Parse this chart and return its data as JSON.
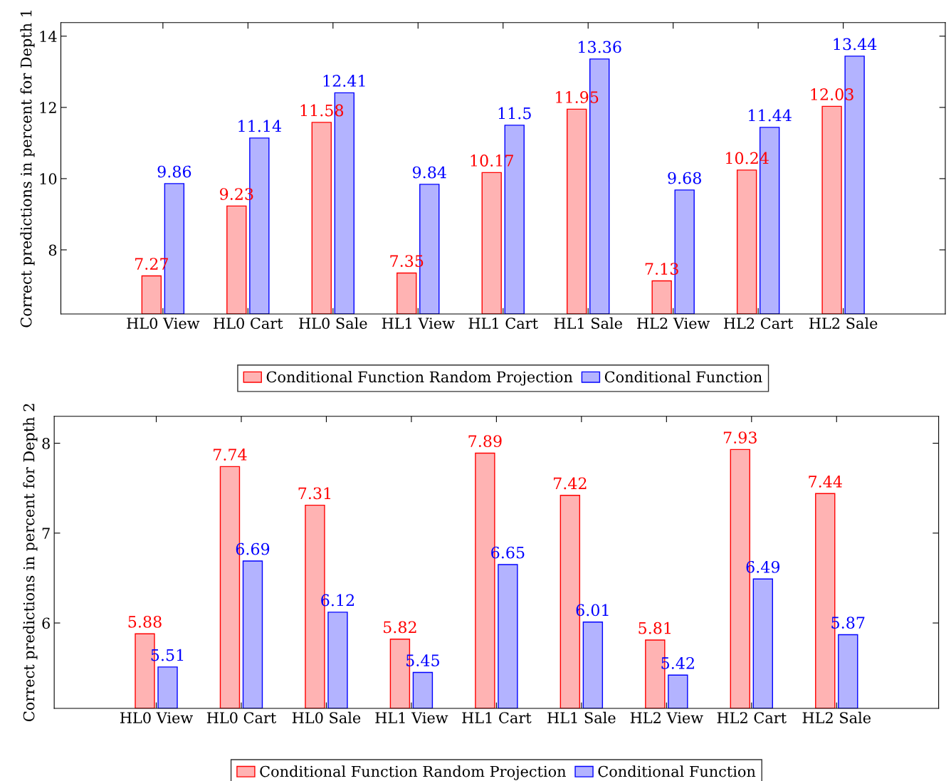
{
  "chart_data": [
    {
      "type": "bar",
      "ylabel": "Correct predictions in percent for Depth 1",
      "categories": [
        "HL0 View",
        "HL0 Cart",
        "HL0 Sale",
        "HL1 View",
        "HL1 Cart",
        "HL1 Sale",
        "HL2 View",
        "HL2 Cart",
        "HL2 Sale"
      ],
      "series": [
        {
          "name": "Conditional Function Random Projection",
          "color": "#ffb3b3",
          "values": [
            7.27,
            9.23,
            11.58,
            7.35,
            10.17,
            11.95,
            7.13,
            10.24,
            12.03
          ]
        },
        {
          "name": "Conditional Function",
          "color": "#b3b3ff",
          "values": [
            9.86,
            11.14,
            12.41,
            9.84,
            11.5,
            13.36,
            9.68,
            11.44,
            13.44
          ]
        }
      ],
      "ylim": [
        6.2,
        14.38
      ],
      "yticks": [
        8,
        10,
        12,
        14
      ],
      "data_labels": true,
      "legend": "bottom",
      "grid": false
    },
    {
      "type": "bar",
      "ylabel": "Correct predictions in percent for Depth 2",
      "categories": [
        "HL0 View",
        "HL0 Cart",
        "HL0 Sale",
        "HL1 View",
        "HL1 Cart",
        "HL1 Sale",
        "HL2 View",
        "HL2 Cart",
        "HL2 Sale"
      ],
      "series": [
        {
          "name": "Conditional Function Random Projection",
          "color": "#ffb3b3",
          "values": [
            5.88,
            7.74,
            7.31,
            5.82,
            7.89,
            7.42,
            5.81,
            7.93,
            7.44
          ]
        },
        {
          "name": "Conditional Function",
          "color": "#b3b3ff",
          "values": [
            5.51,
            6.69,
            6.12,
            5.45,
            6.65,
            6.01,
            5.42,
            6.49,
            5.87
          ]
        }
      ],
      "ylim": [
        5.05,
        8.3
      ],
      "yticks": [
        6,
        7,
        8
      ],
      "data_labels": true,
      "legend": "bottom",
      "grid": false
    }
  ]
}
